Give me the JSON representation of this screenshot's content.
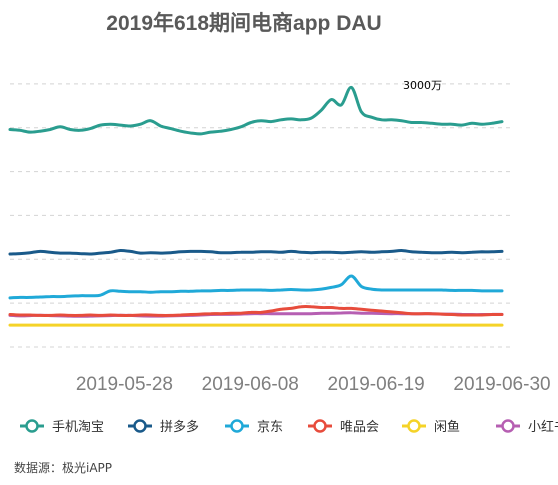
{
  "chart_data": {
    "type": "line",
    "title": "2019年618期间电商app DAU",
    "xlabel": "",
    "ylabel": "",
    "x_ticks": [
      "2019-05-28",
      "2019-06-08",
      "2019-06-19",
      "2019-06-30"
    ],
    "x_start": "2019-05-18",
    "x_end": "2019-06-30",
    "ylim": [
      0,
      3500
    ],
    "grid": true,
    "legend_position": "bottom",
    "annotation": {
      "text": "3000万",
      "x": "2019-06-21",
      "y": 2950
    },
    "series": [
      {
        "name": "手机淘宝",
        "color": "#2a9d8f",
        "values": [
          2480,
          2470,
          2450,
          2460,
          2480,
          2510,
          2480,
          2470,
          2490,
          2530,
          2540,
          2530,
          2520,
          2540,
          2580,
          2520,
          2490,
          2460,
          2440,
          2430,
          2450,
          2460,
          2480,
          2510,
          2560,
          2580,
          2570,
          2590,
          2600,
          2590,
          2610,
          2700,
          2820,
          2760,
          2960,
          2680,
          2620,
          2590,
          2590,
          2580,
          2560,
          2560,
          2550,
          2540,
          2540,
          2530,
          2550,
          2540,
          2550,
          2570
        ]
      },
      {
        "name": "拼多多",
        "color": "#1a5a8a",
        "values": [
          1060,
          1065,
          1075,
          1090,
          1080,
          1070,
          1070,
          1065,
          1060,
          1070,
          1080,
          1100,
          1090,
          1070,
          1075,
          1070,
          1075,
          1085,
          1090,
          1090,
          1085,
          1075,
          1075,
          1080,
          1080,
          1085,
          1085,
          1080,
          1090,
          1080,
          1075,
          1080,
          1080,
          1075,
          1080,
          1085,
          1080,
          1085,
          1090,
          1100,
          1085,
          1080,
          1075,
          1075,
          1080,
          1075,
          1080,
          1085,
          1085,
          1090
        ]
      },
      {
        "name": "京东",
        "color": "#20a9d8",
        "values": [
          560,
          565,
          565,
          570,
          575,
          575,
          580,
          585,
          585,
          590,
          640,
          635,
          630,
          630,
          625,
          630,
          630,
          635,
          635,
          640,
          640,
          645,
          645,
          650,
          650,
          650,
          645,
          650,
          655,
          650,
          650,
          660,
          680,
          710,
          810,
          690,
          660,
          650,
          650,
          650,
          650,
          650,
          650,
          650,
          645,
          645,
          645,
          640,
          640,
          640
        ]
      },
      {
        "name": "唯品会",
        "color": "#e74c3c",
        "values": [
          370,
          365,
          365,
          360,
          360,
          365,
          360,
          360,
          365,
          360,
          365,
          360,
          360,
          365,
          365,
          360,
          360,
          365,
          370,
          375,
          380,
          380,
          385,
          385,
          395,
          395,
          410,
          430,
          440,
          460,
          460,
          450,
          450,
          440,
          440,
          430,
          420,
          410,
          400,
          390,
          380,
          380,
          380,
          375,
          370,
          365,
          365,
          365,
          370,
          370
        ]
      },
      {
        "name": "闲鱼",
        "color": "#f5d328",
        "values": [
          250,
          250,
          250,
          250,
          250,
          250,
          250,
          250,
          250,
          250,
          250,
          250,
          250,
          250,
          250,
          250,
          250,
          250,
          250,
          250,
          250,
          250,
          250,
          250,
          250,
          250,
          250,
          250,
          250,
          250,
          250,
          250,
          250,
          250,
          250,
          250,
          250,
          250,
          250,
          250,
          250,
          250,
          250,
          250,
          250,
          250,
          250,
          250,
          250,
          250
        ]
      },
      {
        "name": "小红书",
        "color": "#b65fb2",
        "values": [
          360,
          355,
          358,
          362,
          358,
          355,
          352,
          350,
          352,
          355,
          358,
          362,
          360,
          355,
          352,
          352,
          355,
          358,
          360,
          365,
          370,
          372,
          372,
          375,
          380,
          380,
          380,
          378,
          380,
          378,
          380,
          385,
          385,
          388,
          390,
          385,
          385,
          382,
          380,
          380,
          378,
          378,
          378,
          375,
          375,
          372,
          370,
          370,
          372,
          372
        ]
      }
    ]
  },
  "source": "数据源：极光iAPP"
}
